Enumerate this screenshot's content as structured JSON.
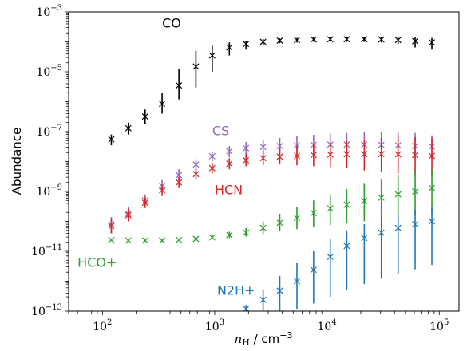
{
  "chart_data": {
    "type": "scatter",
    "xscale": "log",
    "yscale": "log",
    "xlim": [
      50,
      150000
    ],
    "ylim": [
      1e-13,
      0.001
    ],
    "xlabel_main": "n",
    "xlabel_sub": "H",
    "xlabel_unit": " / cm",
    "xlabel_exp": "−3",
    "ylabel": "Abundance",
    "x_ticks": [
      {
        "value": 100,
        "base": "10",
        "exp": "2"
      },
      {
        "value": 1000,
        "base": "10",
        "exp": "3"
      },
      {
        "value": 10000,
        "base": "10",
        "exp": "4"
      },
      {
        "value": 100000,
        "base": "10",
        "exp": "5"
      }
    ],
    "y_ticks": [
      {
        "value": 0.001,
        "base": "10",
        "exp": "−3"
      },
      {
        "value": 1e-05,
        "base": "10",
        "exp": "−5"
      },
      {
        "value": 1e-07,
        "base": "10",
        "exp": "−7"
      },
      {
        "value": 1e-09,
        "base": "10",
        "exp": "−9"
      },
      {
        "value": 1e-11,
        "base": "10",
        "exp": "−11"
      },
      {
        "value": 1e-13,
        "base": "10",
        "exp": "−13"
      }
    ],
    "x": [
      120,
      170,
      240,
      340,
      480,
      680,
      950,
      1350,
      1900,
      2700,
      3800,
      5400,
      7600,
      10700,
      15000,
      21500,
      30500,
      43000,
      61000,
      86000
    ],
    "series": [
      {
        "name": "CO",
        "color": "#000000",
        "label_at": [
          340,
          0.0003
        ],
        "values": [
          5.5e-08,
          1.3e-07,
          3.2e-07,
          8.5e-07,
          3.5e-06,
          1.5e-05,
          3.5e-05,
          6.5e-05,
          8.5e-05,
          0.0001,
          0.00011,
          0.000115,
          0.00012,
          0.000122,
          0.000122,
          0.000122,
          0.00012,
          0.000115,
          0.000105,
          9.5e-05
        ],
        "err_low": [
          3.5e-08,
          8e-08,
          1.8e-07,
          4e-07,
          1.2e-06,
          3e-06,
          1e-05,
          3.5e-05,
          5.5e-05,
          7.5e-05,
          9e-05,
          9.5e-05,
          0.0001,
          0.0001,
          0.0001,
          0.0001,
          9.5e-05,
          8.5e-05,
          6.5e-05,
          5.5e-05
        ],
        "err_high": [
          8e-08,
          2e-07,
          5.5e-07,
          2e-06,
          1.2e-05,
          5e-05,
          7.5e-05,
          9.5e-05,
          0.00011,
          0.000125,
          0.00013,
          0.000135,
          0.00014,
          0.00014,
          0.00014,
          0.00014,
          0.00014,
          0.00014,
          0.00014,
          0.000135
        ]
      },
      {
        "name": "CS",
        "color": "#9467bd",
        "label_at": [
          950,
          7.5e-08
        ],
        "values": [
          8e-11,
          1.8e-10,
          5e-10,
          1.5e-09,
          3.5e-09,
          8e-09,
          1.5e-08,
          2.2e-08,
          2.8e-08,
          3.1e-08,
          3.3e-08,
          3.5e-08,
          3.6e-08,
          3.7e-08,
          3.7e-08,
          3.7e-08,
          3.6e-08,
          3.5e-08,
          3.3e-08,
          3.2e-08
        ],
        "err_low": [
          4e-11,
          1.1e-10,
          3e-10,
          9e-10,
          2.2e-09,
          5e-09,
          1e-08,
          1.4e-08,
          1.7e-08,
          1.8e-08,
          1.8e-08,
          1.8e-08,
          1.8e-08,
          1.7e-08,
          1.6e-08,
          1.6e-08,
          1.5e-08,
          1.4e-08,
          1.3e-08,
          1.2e-08
        ],
        "err_high": [
          1.4e-10,
          3e-10,
          8e-10,
          2.4e-09,
          5.5e-09,
          1.2e-08,
          2.2e-08,
          3.3e-08,
          4.5e-08,
          5.5e-08,
          6.2e-08,
          7e-08,
          7.8e-08,
          8.5e-08,
          9e-08,
          9.5e-08,
          1e-07,
          1e-07,
          9e-08,
          7.5e-08
        ]
      },
      {
        "name": "HCN",
        "color": "#d62728",
        "label_at": [
          1000,
          8e-10
        ],
        "values": [
          7e-11,
          1.6e-10,
          4.2e-10,
          1.1e-09,
          2e-09,
          3.8e-09,
          6e-09,
          8.5e-09,
          1.1e-08,
          1.3e-08,
          1.45e-08,
          1.55e-08,
          1.65e-08,
          1.72e-08,
          1.76e-08,
          1.78e-08,
          1.78e-08,
          1.75e-08,
          1.65e-08,
          1.55e-08
        ],
        "err_low": [
          4e-11,
          1e-10,
          2.8e-10,
          7e-10,
          1.3e-09,
          2.5e-09,
          4e-09,
          5.5e-09,
          7e-09,
          7.5e-09,
          8e-09,
          7.5e-09,
          7e-09,
          6.5e-09,
          6e-09,
          5e-09,
          4.5e-09,
          4e-09,
          3.5e-09,
          3e-09
        ],
        "err_high": [
          1.2e-10,
          2.6e-10,
          6.5e-10,
          1.7e-09,
          3e-09,
          5.5e-09,
          9e-09,
          1.3e-08,
          1.8e-08,
          2.3e-08,
          2.8e-08,
          3.3e-08,
          3.8e-08,
          4.3e-08,
          4.8e-08,
          5.3e-08,
          6e-08,
          6.5e-08,
          6.5e-08,
          6e-08
        ]
      },
      {
        "name": "HCO+",
        "color": "#2ca02c",
        "label_at": [
          60,
          3e-12
        ],
        "values": [
          2.4e-11,
          2.3e-11,
          2.3e-11,
          2.3e-11,
          2.4e-11,
          2.6e-11,
          2.9e-11,
          3.5e-11,
          4.2e-11,
          6e-11,
          9e-11,
          1.3e-10,
          1.9e-10,
          2.7e-10,
          3.6e-10,
          4.8e-10,
          6.2e-10,
          8e-10,
          1e-09,
          1.3e-09
        ],
        "err_low": [
          2.2e-11,
          2.1e-11,
          2.1e-11,
          2.1e-11,
          2.2e-11,
          2.3e-11,
          2.5e-11,
          2.8e-11,
          3.1e-11,
          3.8e-11,
          4.6e-11,
          5.5e-11,
          6.5e-11,
          7.5e-11,
          8.5e-11,
          1e-10,
          1.2e-10,
          1.4e-10,
          1.6e-10,
          1.8e-10
        ],
        "err_high": [
          2.6e-11,
          2.5e-11,
          2.5e-11,
          2.5e-11,
          2.6e-11,
          2.9e-11,
          3.4e-11,
          4.5e-11,
          6e-11,
          1e-10,
          1.8e-10,
          3e-10,
          5e-10,
          8e-10,
          1.2e-09,
          1.8e-09,
          2.5e-09,
          3.5e-09,
          4.5e-09,
          5.5e-09
        ]
      },
      {
        "name": "N2H+",
        "color": "#1f77b4",
        "label_at": [
          1050,
          3.5e-13
        ],
        "values": [
          null,
          null,
          null,
          null,
          null,
          null,
          null,
          null,
          1.2e-13,
          2.4e-13,
          4.8e-13,
          1e-12,
          2.4e-12,
          6.5e-12,
          1.5e-11,
          2.8e-11,
          4.2e-11,
          6e-11,
          8e-11,
          1e-10
        ],
        "err_low": [
          null,
          null,
          null,
          null,
          null,
          null,
          null,
          null,
          8e-14,
          8e-14,
          9e-14,
          1.2e-13,
          1.8e-13,
          3e-13,
          5e-13,
          8e-13,
          1.2e-12,
          1.8e-12,
          2.5e-12,
          3.5e-12
        ],
        "err_high": [
          null,
          null,
          null,
          null,
          null,
          null,
          null,
          null,
          1.6e-13,
          5e-13,
          1.5e-12,
          4e-12,
          1e-11,
          2.5e-11,
          5e-11,
          8e-11,
          1.2e-10,
          1.7e-10,
          2.4e-10,
          3e-10
        ]
      }
    ]
  }
}
